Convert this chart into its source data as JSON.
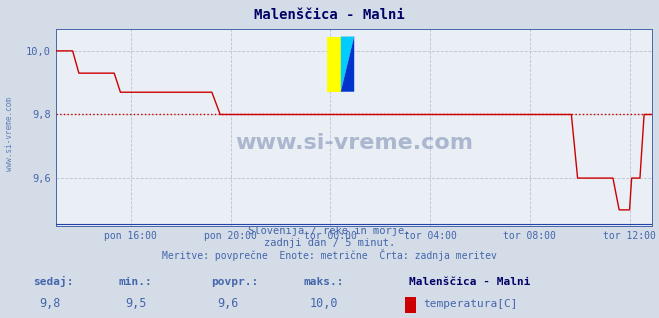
{
  "title": "Malenščica - Malni",
  "bg_color": "#d4dce8",
  "plot_bg_color": "#eaeef5",
  "grid_color": "#b8c4d4",
  "line_color": "#cc0000",
  "avg_line_color": "#cc0000",
  "bottom_line_color": "#2244aa",
  "text_color": "#4466aa",
  "title_color": "#000066",
  "ylim": [
    9.45,
    10.07
  ],
  "yticks": [
    9.6,
    9.8,
    10.0
  ],
  "ytick_labels": [
    "9,6",
    "9,8",
    "10,0"
  ],
  "avg_value": 9.8,
  "x_tick_positions": [
    0,
    48,
    96,
    144,
    192,
    240
  ],
  "x_tick_labels": [
    "pon 16:00",
    "pon 20:00",
    "tor 00:00",
    "tor 04:00",
    "tor 08:00",
    "tor 12:00"
  ],
  "n_points": 288,
  "subtitle1": "Slovenija / reke in morje.",
  "subtitle2": "zadnji dan / 5 minut.",
  "subtitle3": "Meritve: povprečne  Enote: metrične  Črta: zadnja meritev",
  "footer_label1": "sedaj:",
  "footer_label2": "min.:",
  "footer_label3": "povpr.:",
  "footer_label4": "maks.:",
  "footer_val1": "9,8",
  "footer_val2": "9,5",
  "footer_val3": "9,6",
  "footer_val4": "10,0",
  "footer_series": "Malenščica - Malni",
  "footer_unit": "temperatura[C]",
  "watermark": "www.si-vreme.com"
}
